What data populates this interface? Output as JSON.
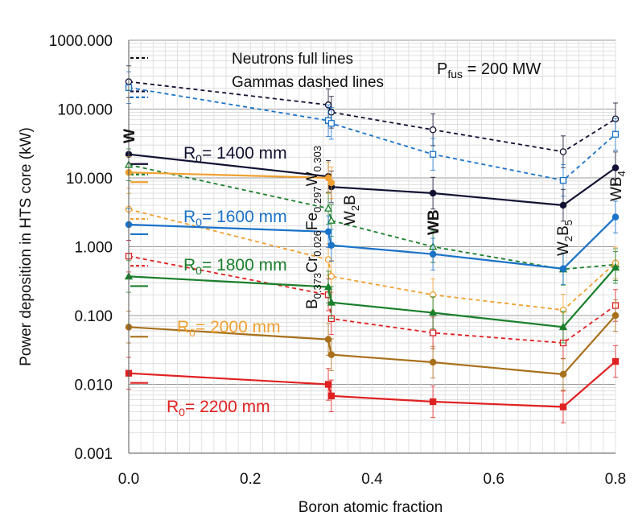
{
  "chart_data": {
    "type": "line",
    "ylabel": "Power deposition in HTS core (kW)",
    "xlabel": "Boron atomic fraction",
    "x_scale": "linear",
    "y_scale": "log",
    "xlim": [
      0.0,
      0.8
    ],
    "ylim": [
      0.001,
      1000
    ],
    "x_ticks": [
      0.0,
      0.2,
      0.4,
      0.6,
      0.8
    ],
    "x_tick_labels": [
      "0.0",
      "0.2",
      "0.4",
      "0.6",
      "0.8"
    ],
    "y_ticks": [
      0.001,
      0.01,
      0.1,
      1,
      10,
      100,
      1000
    ],
    "y_tick_labels": [
      "0.001",
      "0.010",
      "0.100",
      "1.000",
      "10.000",
      "100.000",
      "1000.000"
    ],
    "grid": true,
    "x": [
      0.0,
      0.328,
      0.333,
      0.5,
      0.714,
      0.8
    ],
    "legend_text": {
      "line1": "Neutrons full lines",
      "line2": "Gammas dashed lines"
    },
    "pfus_label": {
      "main": "P",
      "sub": "fus",
      "rest": " = 200 MW"
    },
    "material_labels": [
      {
        "parts": [
          {
            "t": "W"
          }
        ],
        "x": 0.0
      },
      {
        "parts": [
          {
            "t": "B"
          },
          {
            "t": "0.373",
            "sub": true
          },
          {
            "t": "Cr"
          },
          {
            "t": "0.026",
            "sub": true
          },
          {
            "t": "Fe"
          },
          {
            "t": "0.297",
            "sub": true
          },
          {
            "t": "W"
          },
          {
            "t": "0.303",
            "sub": true
          }
        ],
        "x": 0.328
      },
      {
        "parts": [
          {
            "t": "W"
          },
          {
            "t": "2",
            "sub": true
          },
          {
            "t": "B"
          }
        ],
        "x": 0.333
      },
      {
        "parts": [
          {
            "t": "WB"
          }
        ],
        "x": 0.5
      },
      {
        "parts": [
          {
            "t": "W"
          },
          {
            "t": "2",
            "sub": true
          },
          {
            "t": "B"
          },
          {
            "t": "5",
            "sub": true
          }
        ],
        "x": 0.714
      },
      {
        "parts": [
          {
            "t": "WB"
          },
          {
            "t": "4",
            "sub": true
          }
        ],
        "x": 0.8
      }
    ],
    "radius_labels": [
      {
        "main": "R",
        "sub": "0",
        "rest": "= 1400 mm",
        "color": "#111133"
      },
      {
        "main": "R",
        "sub": "0",
        "rest": "= 1600 mm",
        "color": "#1a73c9"
      },
      {
        "main": "R",
        "sub": "0",
        "rest": "= 1800 mm",
        "color": "#1a7f2b"
      },
      {
        "main": "R",
        "sub": "0",
        "rest": "= 2000 mm",
        "color": "#f0a030"
      },
      {
        "main": "R",
        "sub": "0",
        "rest": "= 2200 mm",
        "color": "#e02020"
      }
    ],
    "series": [
      {
        "radius": "1400 mm",
        "kind": "gamma",
        "color": "#111133",
        "dashed": true,
        "marker": "circle-open",
        "values": [
          250,
          115,
          90,
          50,
          24,
          72
        ]
      },
      {
        "radius": "1600 mm",
        "kind": "gamma",
        "color": "#1a73c9",
        "dashed": true,
        "marker": "square-open",
        "values": [
          205,
          68,
          62,
          22,
          9.2,
          43
        ]
      },
      {
        "radius": "1400 mm",
        "kind": "neutron",
        "color": "#111133",
        "dashed": false,
        "marker": "circle",
        "values": [
          22,
          10.5,
          7.4,
          6.0,
          4.0,
          14
        ]
      },
      {
        "radius": "1800 mm",
        "kind": "gamma",
        "color": "#1a7f2b",
        "dashed": true,
        "marker": "triangle-open",
        "values": [
          15.5,
          3.6,
          2.4,
          1.0,
          0.47,
          0.55
        ]
      },
      {
        "radius": "2000 mm",
        "kind": "neutron",
        "color": "#f0a030",
        "dashed": false,
        "marker": "circle",
        "values": [
          12,
          10,
          8.5,
          null,
          null,
          null
        ]
      },
      {
        "radius": "2000 mm",
        "kind": "gamma",
        "color": "#f0a030",
        "dashed": true,
        "marker": "circle-open",
        "values": [
          3.5,
          0.65,
          0.37,
          0.2,
          0.12,
          0.58
        ]
      },
      {
        "radius": "1600 mm",
        "kind": "neutron",
        "color": "#1a73c9",
        "dashed": false,
        "marker": "circle",
        "values": [
          2.1,
          1.65,
          1.05,
          0.78,
          0.48,
          2.7
        ]
      },
      {
        "radius": "2200 mm",
        "kind": "gamma",
        "color": "#e02020",
        "dashed": true,
        "marker": "square-open",
        "values": [
          0.73,
          0.2,
          0.09,
          0.056,
          0.04,
          0.14
        ]
      },
      {
        "radius": "1800 mm",
        "kind": "neutron",
        "color": "#1a7f2b",
        "dashed": false,
        "marker": "triangle",
        "values": [
          0.37,
          0.26,
          0.155,
          0.11,
          0.068,
          0.5
        ]
      },
      {
        "radius": "2000 mm",
        "kind": "neutron",
        "color": "#a8701a",
        "dashed": false,
        "marker": "circle",
        "values": [
          0.068,
          0.045,
          0.027,
          0.021,
          0.014,
          0.1
        ]
      },
      {
        "radius": "2200 mm",
        "kind": "neutron",
        "color": "#e02020",
        "dashed": false,
        "marker": "square",
        "values": [
          0.0145,
          0.01,
          0.0068,
          0.0056,
          0.0047,
          0.0215
        ]
      }
    ]
  }
}
